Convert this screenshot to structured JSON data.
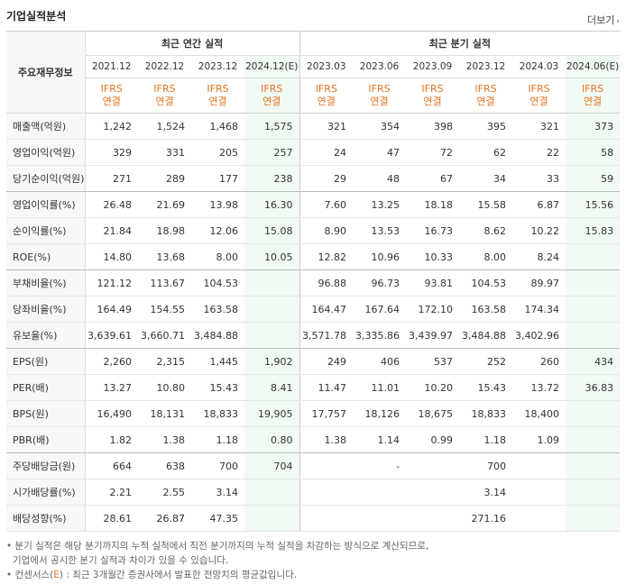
{
  "header": {
    "title": "기업실적분석",
    "more_label": "더보기",
    "more_arrow": "›"
  },
  "table": {
    "corner_label": "주요재무정보",
    "group_annual": "최근 연간 실적",
    "group_quarter": "최근 분기 실적",
    "periods": [
      "2021.12",
      "2022.12",
      "2023.12",
      "2024.12(E)",
      "2023.03",
      "2023.06",
      "2023.09",
      "2023.12",
      "2024.03",
      "2024.06(E)"
    ],
    "ifrs_top": "IFRS",
    "ifrs_bottom": "연결",
    "rows": [
      {
        "label": "매출액(억원)",
        "values": [
          "1,242",
          "1,524",
          "1,468",
          "1,575",
          "321",
          "354",
          "398",
          "395",
          "321",
          "373"
        ]
      },
      {
        "label": "영업이익(억원)",
        "values": [
          "329",
          "331",
          "205",
          "257",
          "24",
          "47",
          "72",
          "62",
          "22",
          "58"
        ]
      },
      {
        "label": "당기순이익(억원)",
        "values": [
          "271",
          "289",
          "177",
          "238",
          "29",
          "48",
          "67",
          "34",
          "33",
          "59"
        ]
      },
      {
        "label": "영업이익률(%)",
        "values": [
          "26.48",
          "21.69",
          "13.98",
          "16.30",
          "7.60",
          "13.25",
          "18.18",
          "15.58",
          "6.87",
          "15.56"
        ]
      },
      {
        "label": "순이익률(%)",
        "values": [
          "21.84",
          "18.98",
          "12.06",
          "15.08",
          "8.90",
          "13.53",
          "16.73",
          "8.62",
          "10.22",
          "15.83"
        ]
      },
      {
        "label": "ROE(%)",
        "values": [
          "14.80",
          "13.68",
          "8.00",
          "10.05",
          "12.82",
          "10.96",
          "10.33",
          "8.00",
          "8.24",
          ""
        ]
      },
      {
        "label": "부채비율(%)",
        "values": [
          "121.12",
          "113.67",
          "104.53",
          "",
          "96.88",
          "96.73",
          "93.81",
          "104.53",
          "89.97",
          ""
        ]
      },
      {
        "label": "당좌비율(%)",
        "values": [
          "164.49",
          "154.55",
          "163.58",
          "",
          "164.47",
          "167.64",
          "172.10",
          "163.58",
          "174.34",
          ""
        ]
      },
      {
        "label": "유보율(%)",
        "values": [
          "3,639.61",
          "3,660.71",
          "3,484.88",
          "",
          "3,571.78",
          "3,335.86",
          "3,439.97",
          "3,484.88",
          "3,402.96",
          ""
        ]
      },
      {
        "label": "EPS(원)",
        "values": [
          "2,260",
          "2,315",
          "1,445",
          "1,902",
          "249",
          "406",
          "537",
          "252",
          "260",
          "434"
        ]
      },
      {
        "label": "PER(배)",
        "values": [
          "13.27",
          "10.80",
          "15.43",
          "8.41",
          "11.47",
          "11.01",
          "10.20",
          "15.43",
          "13.72",
          "36.83"
        ]
      },
      {
        "label": "BPS(원)",
        "values": [
          "16,490",
          "18,131",
          "18,833",
          "19,905",
          "17,757",
          "18,126",
          "18,675",
          "18,833",
          "18,400",
          ""
        ]
      },
      {
        "label": "PBR(배)",
        "values": [
          "1.82",
          "1.38",
          "1.18",
          "0.80",
          "1.38",
          "1.14",
          "0.99",
          "1.18",
          "1.09",
          ""
        ]
      },
      {
        "label": "주당배당금(원)",
        "values": [
          "664",
          "638",
          "700",
          "704",
          "",
          "-",
          "",
          "700",
          "",
          ""
        ]
      },
      {
        "label": "시가배당률(%)",
        "values": [
          "2.21",
          "2.55",
          "3.14",
          "",
          "",
          "",
          "",
          "3.14",
          "",
          ""
        ]
      },
      {
        "label": "배당성향(%)",
        "values": [
          "28.61",
          "26.87",
          "47.35",
          "",
          "",
          "",
          "",
          "271.16",
          "",
          ""
        ]
      }
    ]
  },
  "notes": {
    "line1": "분기 실적은 해당 분기까지의 누적 실적에서 직전 분기까지의 누적 실적을 차감하는 방식으로 계산되므로,",
    "line2": "기업에서 공시한 분기 실적과 차이가 있을 수 있습니다.",
    "line3_prefix": "컨센서스(",
    "line3_e": "E",
    "line3_suffix": ") : 최근 3개월간 증권사에서 발표한 전망치의 평균값입니다."
  }
}
